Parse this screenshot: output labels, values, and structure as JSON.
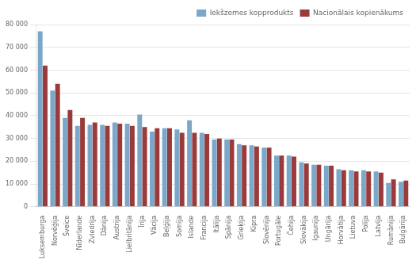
{
  "chart_data": {
    "type": "bar",
    "categories": [
      "Luksemburga",
      "Norvēģija",
      "Šveice",
      "Nīderlande",
      "Zviedrija",
      "Dānija",
      "Austrija",
      "Lielbritānija",
      "Īrija",
      "Vācija",
      "Beļģija",
      "Somija",
      "Islande",
      "Francija",
      "Itālija",
      "Spānija",
      "Grieķija",
      "Kipra",
      "Slovēnija",
      "Portugāle",
      "Čehija",
      "Slovākija",
      "Igaunija",
      "Ungārija",
      "Horvātija",
      "Lietuva",
      "Polija",
      "Latvija",
      "Rumānija",
      "Bulgārija"
    ],
    "series": [
      {
        "name": "Iekšzemes kopprodukts",
        "color": "#7BA7C9",
        "values": [
          77000,
          51000,
          39000,
          35500,
          36000,
          36000,
          37000,
          36500,
          40500,
          33000,
          34500,
          34000,
          38000,
          32500,
          29500,
          29500,
          27500,
          27000,
          26000,
          22500,
          22500,
          19500,
          18500,
          18000,
          16500,
          16000,
          16000,
          15500,
          10500,
          11000
        ]
      },
      {
        "name": "Nacionālais kopienākums",
        "color": "#9B3A3A",
        "values": [
          62000,
          54000,
          42500,
          39000,
          37000,
          35500,
          36500,
          35500,
          35000,
          34500,
          34500,
          32500,
          32500,
          32000,
          30000,
          29500,
          27000,
          26500,
          26000,
          22500,
          22000,
          19000,
          18500,
          18000,
          16000,
          15500,
          15500,
          15000,
          12000,
          11500
        ]
      }
    ],
    "ylim": [
      0,
      80000
    ],
    "yticks": [
      0,
      {
        "value": 10000,
        "label": "10 000"
      },
      {
        "value": 20000,
        "label": "20 000"
      },
      {
        "value": 30000,
        "label": "30 000"
      },
      {
        "value": 40000,
        "label": "40 000"
      },
      {
        "value": 50000,
        "label": "50 000"
      },
      {
        "value": 60000,
        "label": "60 000"
      },
      {
        "value": 70000,
        "label": "70 000"
      },
      {
        "value": 80000,
        "label": "80 000"
      }
    ],
    "grid": true,
    "legend": "upper right"
  }
}
